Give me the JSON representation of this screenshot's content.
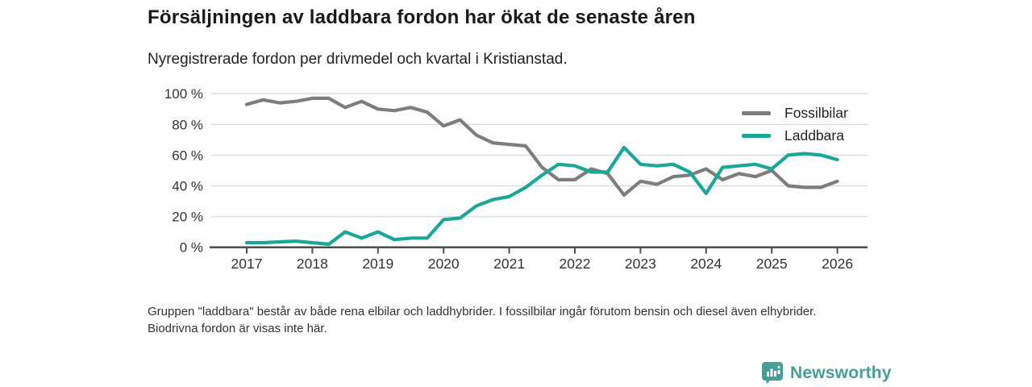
{
  "header": {
    "title": "Försäljningen av laddbara fordon har ökat de senaste åren",
    "subtitle": "Nyregistrerade fordon per drivmedel och kvartal i Kristianstad."
  },
  "chart_data": {
    "type": "line",
    "x_start": "2017 Q1",
    "x_end": "2026 Q1",
    "x_interval": "quarter",
    "x_tick_labels": [
      "2017",
      "2018",
      "2019",
      "2020",
      "2021",
      "2022",
      "2023",
      "2024",
      "2025",
      "2026"
    ],
    "yticks": [
      0,
      20,
      40,
      60,
      80,
      100
    ],
    "ytick_suffix": " %",
    "ylim": [
      0,
      100
    ],
    "grid": "horizontal",
    "legend_position": "top-right",
    "series": [
      {
        "name": "Fossilbilar",
        "color": "#7d7d7d",
        "values": [
          93,
          96,
          94,
          95,
          97,
          97,
          91,
          95,
          90,
          89,
          91,
          88,
          79,
          83,
          73,
          68,
          67,
          66,
          52,
          44,
          44,
          51,
          48,
          34,
          43,
          41,
          46,
          47,
          51,
          44,
          48,
          46,
          50,
          40,
          39,
          39,
          43
        ]
      },
      {
        "name": "Laddbara",
        "color": "#1aa79a",
        "values": [
          3,
          3,
          3.5,
          4,
          3,
          2,
          10,
          6,
          10,
          5,
          6,
          6,
          18,
          19,
          27,
          31,
          33,
          39,
          47,
          54,
          53,
          49,
          49,
          65,
          54,
          53,
          54,
          49,
          35,
          52,
          53,
          54,
          51,
          60,
          61,
          60,
          57
        ]
      }
    ]
  },
  "footnote": {
    "text": "Gruppen \"laddbara\" består av både rena elbilar och laddhybrider. I fossilbilar ingår förutom bensin och diesel även elhybrider. Biodrivna fordon är visas inte här."
  },
  "logo": {
    "text": "Newsworthy",
    "color": "#459e98",
    "icon": "bar-chart-bubble-icon"
  },
  "axis_colors": {
    "grid": "#dcdcdc",
    "axis": "#4d4d4d",
    "tick_label": "#333333"
  }
}
